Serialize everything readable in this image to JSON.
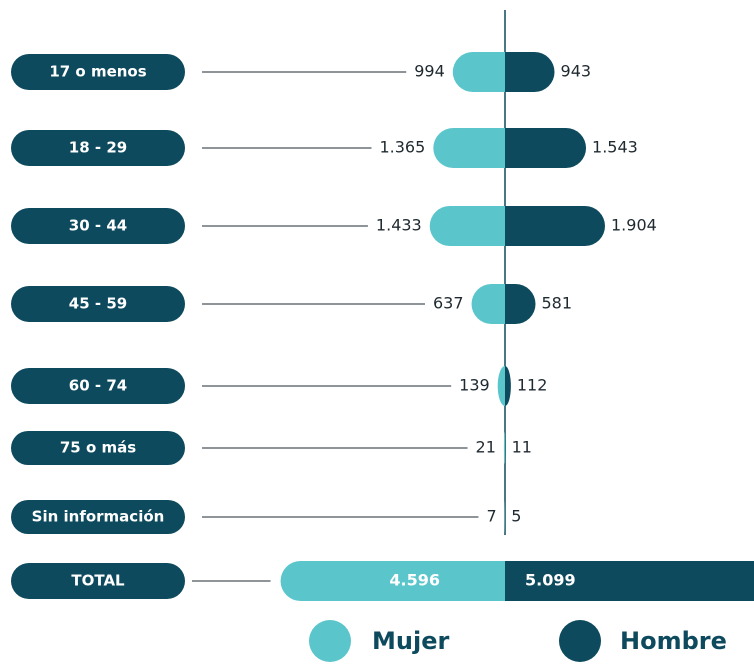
{
  "chart_data": {
    "type": "butterfly",
    "categories": [
      "17 o menos",
      "18 - 29",
      "30 - 44",
      "45 - 59",
      "60 - 74",
      "75 o más",
      "Sin información"
    ],
    "series": [
      {
        "name": "Mujer",
        "color": "#5bc5cc",
        "values": [
          994,
          1365,
          1433,
          637,
          139,
          21,
          7
        ],
        "value_labels": [
          "994",
          "1.365",
          "1.433",
          "637",
          "139",
          "21",
          "7"
        ]
      },
      {
        "name": "Hombre",
        "color": "#0e4a5e",
        "values": [
          943,
          1543,
          1904,
          581,
          112,
          11,
          5
        ],
        "value_labels": [
          "943",
          "1.543",
          "1.904",
          "581",
          "112",
          "11",
          "5"
        ]
      }
    ],
    "total": {
      "label": "TOTAL",
      "values": [
        4596,
        5099
      ],
      "value_labels": [
        "4.596",
        "5.099"
      ]
    }
  }
}
